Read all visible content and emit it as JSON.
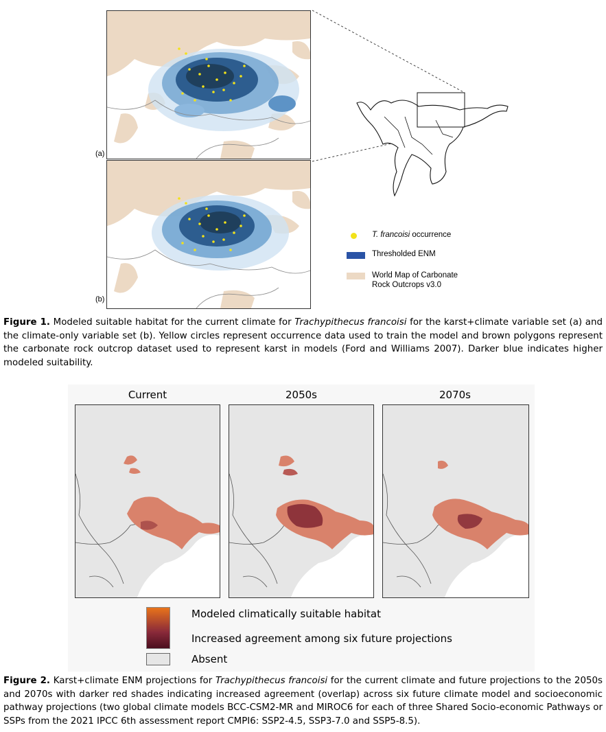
{
  "figure1": {
    "panel_a_label": "(a)",
    "panel_b_label": "(b)",
    "legend": [
      {
        "label_italic": "T. francoisi",
        "label_rest": " occurrence",
        "color": "#f2e21a",
        "icon": "yellow-circle-icon"
      },
      {
        "label_italic": "",
        "label_rest": "Thresholded ENM",
        "color": "#2a53a6",
        "icon": "blue-rect-icon"
      },
      {
        "label_italic": "",
        "label_rest": "World Map of Carbonate\nRock Outcrops v3.0",
        "color": "#ecd9c4",
        "icon": "tan-rect-icon"
      }
    ],
    "caption": {
      "bold": "Figure 1.",
      "text_1": " Modeled suitable habitat for the current climate for ",
      "italic": "Trachypithecus francoisi",
      "text_2": " for the karst+climate variable set (a) and the climate-only variable set (b). Yellow circles represent occurrence data used to train the model and brown polygons represent the carbonate rock outcrop dataset used to represent karst in models (Ford and Williams 2007). Darker blue indicates higher modeled suitability."
    }
  },
  "figure2": {
    "columns": [
      "Current",
      "2050s",
      "2070s"
    ],
    "legend": [
      {
        "label": "Modeled climatically suitable habitat",
        "icon": "gradient-swatch-icon"
      },
      {
        "label": "Increased agreement among six future projections",
        "icon": "gradient-swatch-icon"
      },
      {
        "label": "Absent",
        "icon": "gray-swatch-icon"
      }
    ],
    "caption": {
      "bold": "Figure 2.",
      "text_1": " Karst+climate ENM projections for ",
      "italic": "Trachypithecus francoisi",
      "text_2": " for the current climate and future projections to the 2050s and 2070s with darker red shades indicating increased agreement (overlap) across six future climate model and socioeconomic pathway projections (two global climate models BCC-CSM2-MR and MIROC6 for each of three Shared Socio-economic Pathways or SSPs from the 2021 IPCC 6th assessment report CMPI6: SSP2-4.5, SSP3-7.0 and SSP5-8.5)."
    }
  },
  "colors": {
    "karst": "#ecd9c4",
    "enm_dark": "#1f4f8a",
    "enm_light": "#cfe2f2",
    "occurrence": "#f2e21a",
    "absent": "#e6e6e6",
    "suitable": "#d9826b",
    "agreement": "#7a2030"
  }
}
